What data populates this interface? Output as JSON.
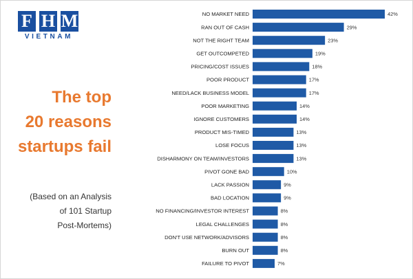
{
  "logo": {
    "letters": [
      "F",
      "H",
      "M"
    ],
    "subtitle": "VIETNAM",
    "color": "#1a4fa0"
  },
  "headline": {
    "lines": [
      "The top",
      "20 reasons",
      "startups fail"
    ],
    "color": "#e8792f"
  },
  "note": {
    "lines": [
      "(Based on an Analysis",
      "of 101 Startup",
      "Post-Mortems)"
    ]
  },
  "chart_data": {
    "type": "bar",
    "orientation": "horizontal",
    "bar_color": "#1f5aa6",
    "value_suffix": "%",
    "xlim": [
      0,
      42
    ],
    "categories": [
      "NO MARKET NEED",
      "RAN OUT OF CASH",
      "NOT THE RIGHT TEAM",
      "GET OUTCOMPETED",
      "PRICING/COST ISSUES",
      "POOR PRODUCT",
      "NEED/LACK BUSINESS MODEL",
      "POOR MARKETING",
      "IGNORE CUSTOMERS",
      "PRODUCT MIS-TIMED",
      "LOSE FOCUS",
      "DISHARMONY ON TEAM/INVESTORS",
      "PIVOT GONE BAD",
      "LACK PASSION",
      "BAD LOCATION",
      "NO FINANCING/INVESTOR INTEREST",
      "LEGAL CHALLENGES",
      "DON'T USE NETWORK/ADVISORS",
      "BURN OUT",
      "FAILURE TO PIVOT"
    ],
    "values": [
      42,
      29,
      23,
      19,
      18,
      17,
      17,
      14,
      14,
      13,
      13,
      13,
      10,
      9,
      9,
      8,
      8,
      8,
      8,
      7
    ]
  }
}
